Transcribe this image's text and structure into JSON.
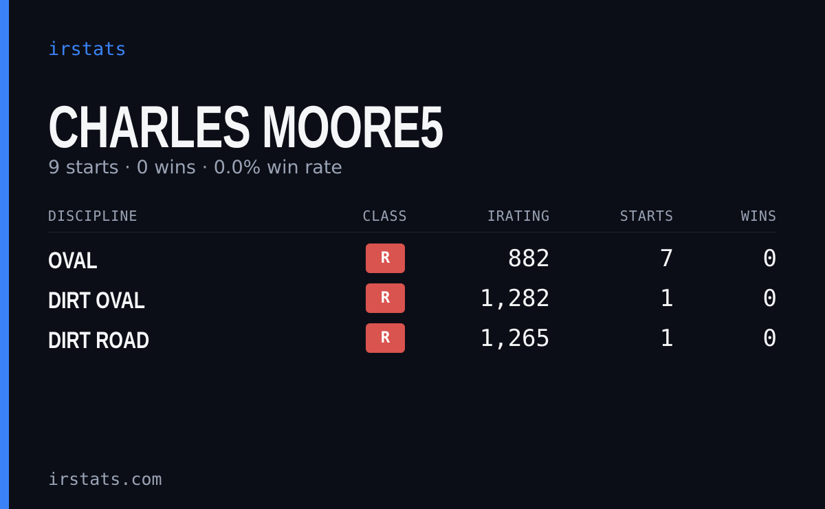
{
  "brand": "irstats",
  "driver": {
    "name": "CHARLES MOORE5",
    "summary": "9 starts · 0 wins · 0.0% win rate"
  },
  "table": {
    "headers": [
      "DISCIPLINE",
      "CLASS",
      "IRATING",
      "STARTS",
      "WINS"
    ],
    "rows": [
      [
        "OVAL",
        "R",
        "882",
        "7",
        "0"
      ],
      [
        "DIRT OVAL",
        "R",
        "1,282",
        "1",
        "0"
      ],
      [
        "DIRT ROAD",
        "R",
        "1,265",
        "1",
        "0"
      ]
    ]
  },
  "footer": "irstats.com"
}
